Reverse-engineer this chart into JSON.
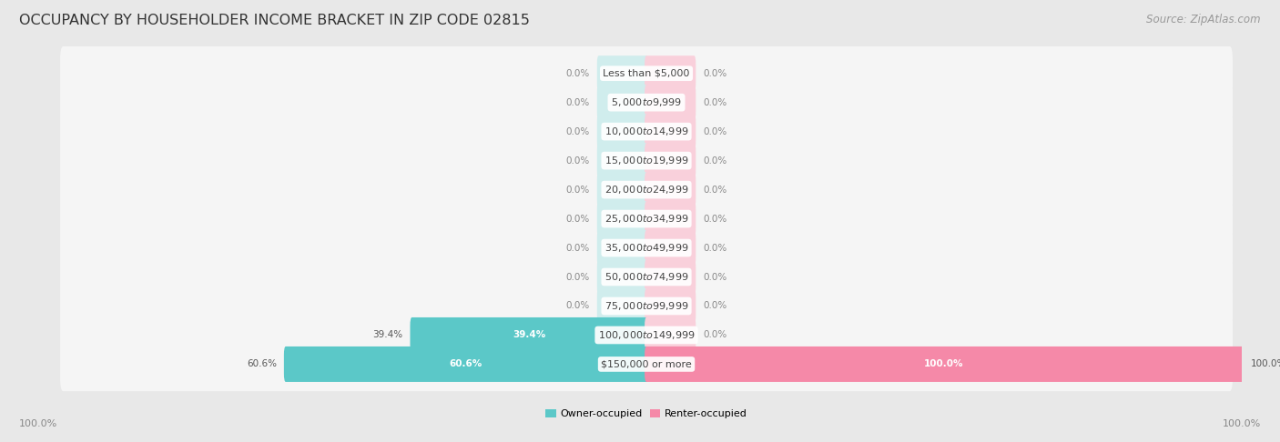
{
  "title": "OCCUPANCY BY HOUSEHOLDER INCOME BRACKET IN ZIP CODE 02815",
  "source": "Source: ZipAtlas.com",
  "categories": [
    "Less than $5,000",
    "$5,000 to $9,999",
    "$10,000 to $14,999",
    "$15,000 to $19,999",
    "$20,000 to $24,999",
    "$25,000 to $34,999",
    "$35,000 to $49,999",
    "$50,000 to $74,999",
    "$75,000 to $99,999",
    "$100,000 to $149,999",
    "$150,000 or more"
  ],
  "owner_pct": [
    0.0,
    0.0,
    0.0,
    0.0,
    0.0,
    0.0,
    0.0,
    0.0,
    0.0,
    39.4,
    60.6
  ],
  "renter_pct": [
    0.0,
    0.0,
    0.0,
    0.0,
    0.0,
    0.0,
    0.0,
    0.0,
    0.0,
    0.0,
    100.0
  ],
  "owner_color": "#5bc8c8",
  "renter_color": "#f589a8",
  "bg_color": "#e8e8e8",
  "bar_bg_color": "#f5f5f5",
  "stub_pct": 8.0,
  "bar_height": 0.62,
  "title_fontsize": 11.5,
  "source_fontsize": 8.5,
  "axis_label_fontsize": 8,
  "category_fontsize": 8,
  "value_fontsize": 7.5
}
